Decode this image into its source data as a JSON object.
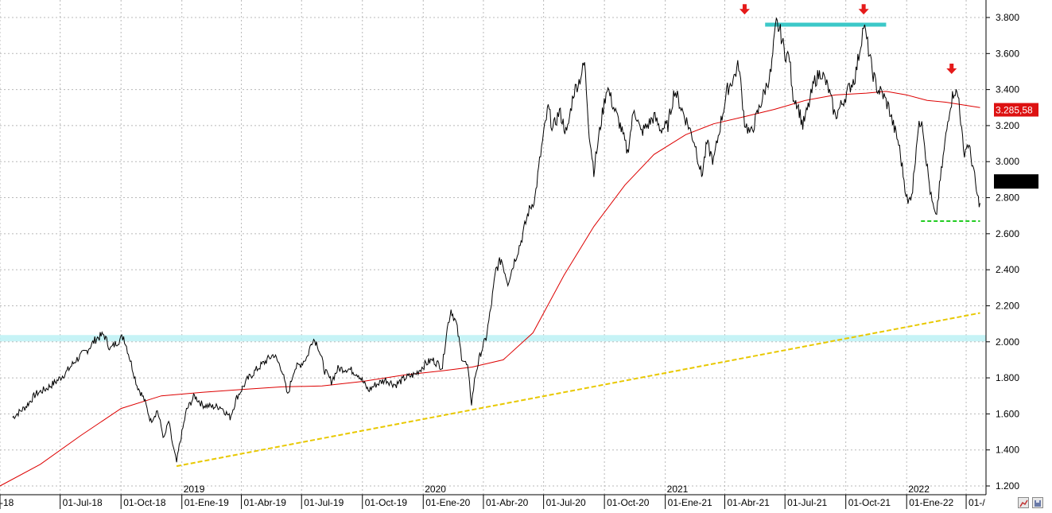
{
  "chart_data": {
    "type": "line",
    "title": "",
    "xlabel": "",
    "ylabel": "",
    "ylim": [
      1150,
      3900
    ],
    "y_ticks": [
      "3.800",
      "3.600",
      "3.400",
      "3.200",
      "3.000",
      "2.800",
      "2.600",
      "2.400",
      "2.200",
      "2.000",
      "1.800",
      "1.600",
      "1.400",
      "1.200"
    ],
    "y_tick_values": [
      3800,
      3600,
      3400,
      3200,
      3000,
      2800,
      2600,
      2400,
      2200,
      2000,
      1800,
      1600,
      1400,
      1200
    ],
    "x_ticks": [
      "-18",
      "01-Jul-18",
      "01-Oct-18",
      "01-Ene-19",
      "01-Abr-19",
      "01-Jul-19",
      "01-Oct-19",
      "01-Ene-20",
      "01-Abr-20",
      "01-Jul-20",
      "01-Oct-20",
      "01-Ene-21",
      "01-Abr-21",
      "01-Jul-21",
      "01-Oct-21",
      "01-Ene-22",
      "01-/"
    ],
    "x_tick_dates": [
      "2018-04-01",
      "2018-07-01",
      "2018-10-01",
      "2019-01-01",
      "2019-04-01",
      "2019-07-01",
      "2019-10-01",
      "2020-01-01",
      "2020-04-01",
      "2020-07-01",
      "2020-10-01",
      "2021-01-01",
      "2021-04-01",
      "2021-07-01",
      "2021-10-01",
      "2022-01-01",
      "2022-04-01"
    ],
    "year_labels": [
      "2019",
      "2020",
      "2021",
      "2022"
    ],
    "year_dates": [
      "2019-01-01",
      "2020-01-01",
      "2021-01-01",
      "2022-01-01"
    ],
    "price_badge": "3.285,58",
    "current_badge": "",
    "grid": true,
    "series": [
      {
        "name": "",
        "kind": "price",
        "color": "#000000",
        "points": [
          [
            "2018-04-20",
            1580
          ],
          [
            "2018-05-10",
            1640
          ],
          [
            "2018-05-25",
            1710
          ],
          [
            "2018-06-10",
            1740
          ],
          [
            "2018-06-25",
            1780
          ],
          [
            "2018-07-10",
            1830
          ],
          [
            "2018-07-25",
            1900
          ],
          [
            "2018-08-10",
            1950
          ],
          [
            "2018-08-25",
            2020
          ],
          [
            "2018-09-05",
            2040
          ],
          [
            "2018-09-15",
            1960
          ],
          [
            "2018-09-25",
            2000
          ],
          [
            "2018-10-05",
            2030
          ],
          [
            "2018-10-15",
            1900
          ],
          [
            "2018-10-25",
            1760
          ],
          [
            "2018-11-05",
            1680
          ],
          [
            "2018-11-15",
            1560
          ],
          [
            "2018-11-25",
            1620
          ],
          [
            "2018-12-05",
            1460
          ],
          [
            "2018-12-12",
            1560
          ],
          [
            "2018-12-18",
            1430
          ],
          [
            "2018-12-24",
            1330
          ],
          [
            "2018-12-28",
            1420
          ],
          [
            "2019-01-08",
            1620
          ],
          [
            "2019-01-20",
            1700
          ],
          [
            "2019-02-01",
            1650
          ],
          [
            "2019-02-15",
            1640
          ],
          [
            "2019-03-01",
            1640
          ],
          [
            "2019-03-15",
            1580
          ],
          [
            "2019-03-25",
            1690
          ],
          [
            "2019-04-10",
            1790
          ],
          [
            "2019-04-25",
            1850
          ],
          [
            "2019-05-10",
            1900
          ],
          [
            "2019-05-20",
            1930
          ],
          [
            "2019-06-01",
            1850
          ],
          [
            "2019-06-10",
            1700
          ],
          [
            "2019-06-20",
            1850
          ],
          [
            "2019-07-01",
            1880
          ],
          [
            "2019-07-10",
            1920
          ],
          [
            "2019-07-18",
            2020
          ],
          [
            "2019-07-25",
            1990
          ],
          [
            "2019-08-05",
            1840
          ],
          [
            "2019-08-15",
            1780
          ],
          [
            "2019-08-25",
            1850
          ],
          [
            "2019-09-10",
            1850
          ],
          [
            "2019-09-25",
            1820
          ],
          [
            "2019-10-10",
            1730
          ],
          [
            "2019-10-20",
            1760
          ],
          [
            "2019-11-05",
            1790
          ],
          [
            "2019-11-20",
            1760
          ],
          [
            "2019-12-05",
            1800
          ],
          [
            "2019-12-20",
            1820
          ],
          [
            "2020-01-05",
            1880
          ],
          [
            "2020-01-15",
            1900
          ],
          [
            "2020-01-30",
            1860
          ],
          [
            "2020-02-05",
            2050
          ],
          [
            "2020-02-12",
            2180
          ],
          [
            "2020-02-20",
            2100
          ],
          [
            "2020-02-28",
            1920
          ],
          [
            "2020-03-08",
            1860
          ],
          [
            "2020-03-14",
            1660
          ],
          [
            "2020-03-20",
            1820
          ],
          [
            "2020-03-28",
            1940
          ],
          [
            "2020-04-05",
            2020
          ],
          [
            "2020-04-12",
            2180
          ],
          [
            "2020-04-20",
            2400
          ],
          [
            "2020-04-28",
            2460
          ],
          [
            "2020-05-08",
            2330
          ],
          [
            "2020-05-18",
            2450
          ],
          [
            "2020-05-28",
            2560
          ],
          [
            "2020-06-08",
            2720
          ],
          [
            "2020-06-18",
            2800
          ],
          [
            "2020-06-25",
            3000
          ],
          [
            "2020-07-01",
            3150
          ],
          [
            "2020-07-08",
            3300
          ],
          [
            "2020-07-15",
            3180
          ],
          [
            "2020-07-25",
            3280
          ],
          [
            "2020-08-05",
            3150
          ],
          [
            "2020-08-15",
            3380
          ],
          [
            "2020-08-25",
            3460
          ],
          [
            "2020-09-01",
            3550
          ],
          [
            "2020-09-08",
            3160
          ],
          [
            "2020-09-15",
            2950
          ],
          [
            "2020-09-25",
            3200
          ],
          [
            "2020-10-05",
            3420
          ],
          [
            "2020-10-15",
            3300
          ],
          [
            "2020-10-25",
            3200
          ],
          [
            "2020-11-05",
            3050
          ],
          [
            "2020-11-15",
            3300
          ],
          [
            "2020-11-25",
            3160
          ],
          [
            "2020-12-05",
            3200
          ],
          [
            "2020-12-15",
            3250
          ],
          [
            "2020-12-25",
            3180
          ],
          [
            "2021-01-05",
            3200
          ],
          [
            "2021-01-15",
            3400
          ],
          [
            "2021-01-25",
            3300
          ],
          [
            "2021-02-05",
            3200
          ],
          [
            "2021-02-15",
            3100
          ],
          [
            "2021-02-25",
            2920
          ],
          [
            "2021-03-05",
            3100
          ],
          [
            "2021-03-15",
            3000
          ],
          [
            "2021-03-25",
            3200
          ],
          [
            "2021-04-05",
            3400
          ],
          [
            "2021-04-15",
            3470
          ],
          [
            "2021-04-22",
            3540
          ],
          [
            "2021-05-01",
            3220
          ],
          [
            "2021-05-10",
            3150
          ],
          [
            "2021-05-20",
            3260
          ],
          [
            "2021-06-01",
            3400
          ],
          [
            "2021-06-10",
            3500
          ],
          [
            "2021-06-15",
            3680
          ],
          [
            "2021-06-18",
            3770
          ],
          [
            "2021-06-24",
            3720
          ],
          [
            "2021-07-01",
            3600
          ],
          [
            "2021-07-08",
            3580
          ],
          [
            "2021-07-12",
            3380
          ],
          [
            "2021-07-20",
            3320
          ],
          [
            "2021-07-28",
            3200
          ],
          [
            "2021-08-05",
            3300
          ],
          [
            "2021-08-15",
            3450
          ],
          [
            "2021-08-25",
            3500
          ],
          [
            "2021-09-05",
            3400
          ],
          [
            "2021-09-15",
            3250
          ],
          [
            "2021-09-25",
            3320
          ],
          [
            "2021-10-05",
            3400
          ],
          [
            "2021-10-15",
            3470
          ],
          [
            "2021-10-22",
            3620
          ],
          [
            "2021-10-28",
            3760
          ],
          [
            "2021-11-03",
            3650
          ],
          [
            "2021-11-10",
            3500
          ],
          [
            "2021-11-18",
            3400
          ],
          [
            "2021-11-25",
            3380
          ],
          [
            "2021-12-05",
            3300
          ],
          [
            "2021-12-12",
            3200
          ],
          [
            "2021-12-20",
            3100
          ],
          [
            "2021-12-28",
            2900
          ],
          [
            "2022-01-03",
            2760
          ],
          [
            "2022-01-10",
            2850
          ],
          [
            "2022-01-17",
            3150
          ],
          [
            "2022-01-24",
            3250
          ],
          [
            "2022-01-31",
            3000
          ],
          [
            "2022-02-07",
            2800
          ],
          [
            "2022-02-14",
            2680
          ],
          [
            "2022-02-21",
            2900
          ],
          [
            "2022-02-28",
            3100
          ],
          [
            "2022-03-07",
            3300
          ],
          [
            "2022-03-14",
            3400
          ],
          [
            "2022-03-21",
            3350
          ],
          [
            "2022-03-28",
            3050
          ],
          [
            "2022-04-04",
            3100
          ],
          [
            "2022-04-11",
            2980
          ],
          [
            "2022-04-18",
            2800
          ],
          [
            "2022-04-22",
            2770
          ]
        ]
      },
      {
        "name": "",
        "kind": "moving-average",
        "color": "#dd0000",
        "points": [
          [
            "2018-04-01",
            1200
          ],
          [
            "2018-06-01",
            1320
          ],
          [
            "2018-08-01",
            1480
          ],
          [
            "2018-10-01",
            1630
          ],
          [
            "2018-12-01",
            1700
          ],
          [
            "2019-02-01",
            1720
          ],
          [
            "2019-04-01",
            1735
          ],
          [
            "2019-06-01",
            1750
          ],
          [
            "2019-08-01",
            1755
          ],
          [
            "2019-10-01",
            1780
          ],
          [
            "2019-12-01",
            1815
          ],
          [
            "2020-02-01",
            1840
          ],
          [
            "2020-03-15",
            1860
          ],
          [
            "2020-05-01",
            1900
          ],
          [
            "2020-06-15",
            2050
          ],
          [
            "2020-08-01",
            2370
          ],
          [
            "2020-09-15",
            2640
          ],
          [
            "2020-11-01",
            2870
          ],
          [
            "2020-12-15",
            3040
          ],
          [
            "2021-02-01",
            3150
          ],
          [
            "2021-03-15",
            3210
          ],
          [
            "2021-05-01",
            3250
          ],
          [
            "2021-06-15",
            3290
          ],
          [
            "2021-08-01",
            3340
          ],
          [
            "2021-09-15",
            3370
          ],
          [
            "2021-11-01",
            3380
          ],
          [
            "2021-12-01",
            3390
          ],
          [
            "2022-01-01",
            3370
          ],
          [
            "2022-02-01",
            3340
          ],
          [
            "2022-03-01",
            3330
          ],
          [
            "2022-04-22",
            3300
          ]
        ]
      }
    ],
    "annotations": {
      "trendline": {
        "color": "#e8c800",
        "from": [
          "2018-12-24",
          1310
        ],
        "to": [
          "2022-04-22",
          2160
        ]
      },
      "support_band": {
        "color": "#b8f0f4",
        "value": 2020
      },
      "resistance": {
        "color": "#3cc8c8",
        "from": "2021-06-01",
        "to": "2021-12-01",
        "value": 3760
      },
      "low_line": {
        "color": "#22cc22",
        "from": "2022-01-01",
        "to": "2022-04-22",
        "value": 2670
      },
      "arrows": [
        {
          "date": "2021-05-01",
          "value": 3830
        },
        {
          "date": "2021-10-28",
          "value": 3830
        },
        {
          "date": "2022-03-10",
          "value": 3500
        }
      ],
      "arrow_color": "#e51a1a"
    }
  }
}
